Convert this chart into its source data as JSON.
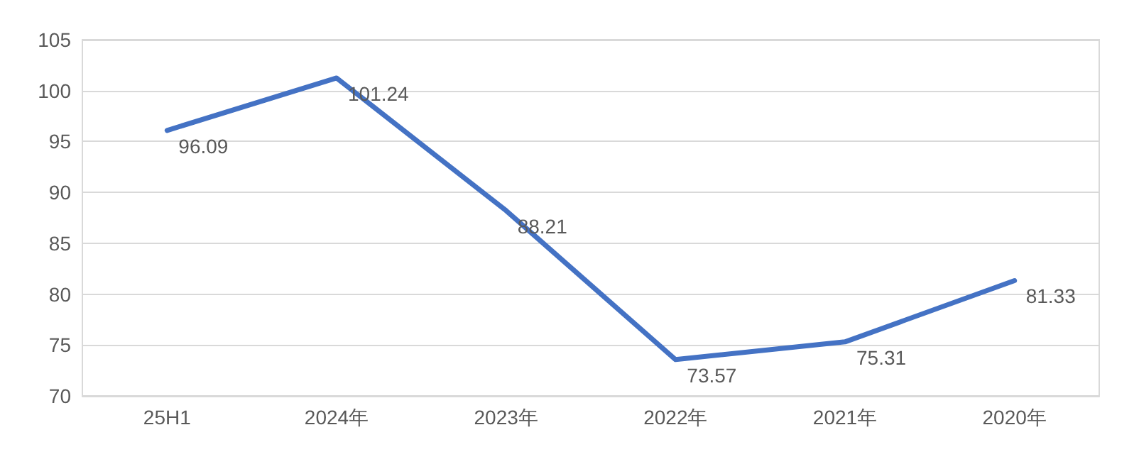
{
  "chart_data": {
    "type": "line",
    "categories": [
      "25H1",
      "2024年",
      "2023年",
      "2022年",
      "2021年",
      "2020年"
    ],
    "series": [
      {
        "color": "#4472c4",
        "values": [
          96.09,
          101.24,
          88.21,
          73.57,
          75.31,
          81.33
        ]
      }
    ],
    "ylim": [
      70,
      105
    ],
    "yticks": [
      70,
      75,
      80,
      85,
      90,
      95,
      100,
      105
    ],
    "grid": "y",
    "marker": "none",
    "line_style": "solid",
    "data_labels": true
  }
}
